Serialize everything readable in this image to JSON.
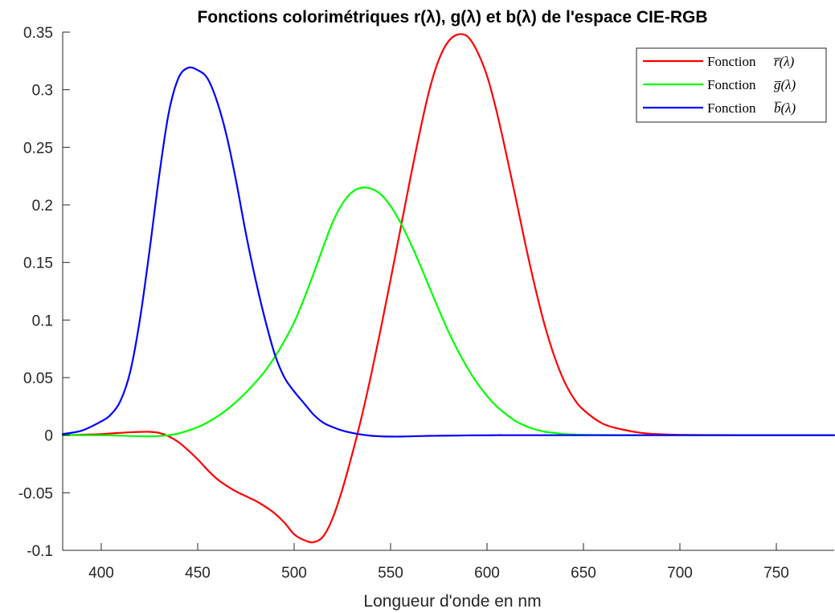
{
  "chart_data": {
    "type": "line",
    "title": "Fonctions colorimétriques r(λ), g(λ) et b(λ) de l'espace CIE-RGB",
    "xlabel": "Longueur d'onde en nm",
    "ylabel": "",
    "xlim": [
      380,
      780
    ],
    "ylim": [
      -0.1,
      0.35
    ],
    "xticks": [
      400,
      450,
      500,
      550,
      600,
      650,
      700,
      750
    ],
    "yticks": [
      -0.1,
      -0.05,
      0,
      0.05,
      0.1,
      0.15,
      0.2,
      0.25,
      0.3,
      0.35
    ],
    "grid": false,
    "legend_position": "top-right",
    "x": [
      380,
      390,
      400,
      405,
      410,
      415,
      420,
      425,
      430,
      435,
      440,
      445,
      450,
      455,
      460,
      465,
      470,
      475,
      480,
      485,
      490,
      495,
      500,
      505,
      510,
      515,
      520,
      525,
      530,
      535,
      540,
      545,
      550,
      555,
      560,
      565,
      570,
      575,
      580,
      585,
      590,
      595,
      600,
      605,
      610,
      615,
      620,
      625,
      630,
      635,
      640,
      645,
      650,
      660,
      670,
      680,
      690,
      700,
      720,
      740,
      760,
      780
    ],
    "series": [
      {
        "name": "Fonction",
        "math": "r̅(λ)",
        "color": "#ff0000",
        "values": [
          0.0,
          0.0004,
          0.0009,
          0.0015,
          0.002,
          0.0025,
          0.0028,
          0.0029,
          0.002,
          -0.001,
          -0.006,
          -0.013,
          -0.021,
          -0.03,
          -0.038,
          -0.044,
          -0.049,
          -0.053,
          -0.057,
          -0.062,
          -0.068,
          -0.076,
          -0.086,
          -0.091,
          -0.093,
          -0.088,
          -0.072,
          -0.047,
          -0.017,
          0.016,
          0.053,
          0.093,
          0.135,
          0.178,
          0.221,
          0.262,
          0.299,
          0.326,
          0.342,
          0.348,
          0.346,
          0.333,
          0.312,
          0.281,
          0.244,
          0.205,
          0.165,
          0.128,
          0.095,
          0.068,
          0.047,
          0.032,
          0.022,
          0.01,
          0.005,
          0.002,
          0.0008,
          0.0003,
          0.0001,
          0.0,
          0.0,
          0.0
        ]
      },
      {
        "name": "Fonction",
        "math": "g̅(λ)",
        "color": "#00ff00",
        "values": [
          0.0,
          0.0,
          -0.0001,
          -0.0002,
          -0.0004,
          -0.0007,
          -0.0009,
          -0.001,
          -0.0007,
          0.0,
          0.0015,
          0.004,
          0.007,
          0.011,
          0.016,
          0.022,
          0.029,
          0.037,
          0.046,
          0.056,
          0.068,
          0.082,
          0.098,
          0.118,
          0.14,
          0.163,
          0.185,
          0.201,
          0.211,
          0.215,
          0.214,
          0.209,
          0.199,
          0.185,
          0.168,
          0.149,
          0.129,
          0.109,
          0.09,
          0.073,
          0.058,
          0.045,
          0.034,
          0.025,
          0.018,
          0.012,
          0.008,
          0.005,
          0.003,
          0.002,
          0.001,
          0.0006,
          0.0003,
          0.0001,
          0.0,
          0.0,
          0.0,
          0.0,
          0.0,
          0.0,
          0.0,
          0.0
        ]
      },
      {
        "name": "Fonction",
        "math": "b̅(λ)",
        "color": "#0000ff",
        "values": [
          0.001,
          0.004,
          0.012,
          0.018,
          0.03,
          0.055,
          0.1,
          0.16,
          0.225,
          0.28,
          0.31,
          0.319,
          0.317,
          0.31,
          0.29,
          0.26,
          0.22,
          0.175,
          0.135,
          0.1,
          0.07,
          0.05,
          0.038,
          0.028,
          0.018,
          0.011,
          0.007,
          0.004,
          0.002,
          0.0005,
          -0.0005,
          -0.001,
          -0.0012,
          -0.0012,
          -0.001,
          -0.0008,
          -0.0006,
          -0.0005,
          -0.0004,
          -0.0003,
          -0.0002,
          -0.0001,
          -0.0001,
          0.0,
          0.0,
          0.0,
          0.0,
          0.0,
          0.0,
          0.0,
          0.0,
          0.0,
          0.0,
          0.0,
          0.0,
          0.0,
          0.0,
          0.0,
          0.0,
          0.0,
          0.0,
          0.0
        ]
      }
    ]
  }
}
